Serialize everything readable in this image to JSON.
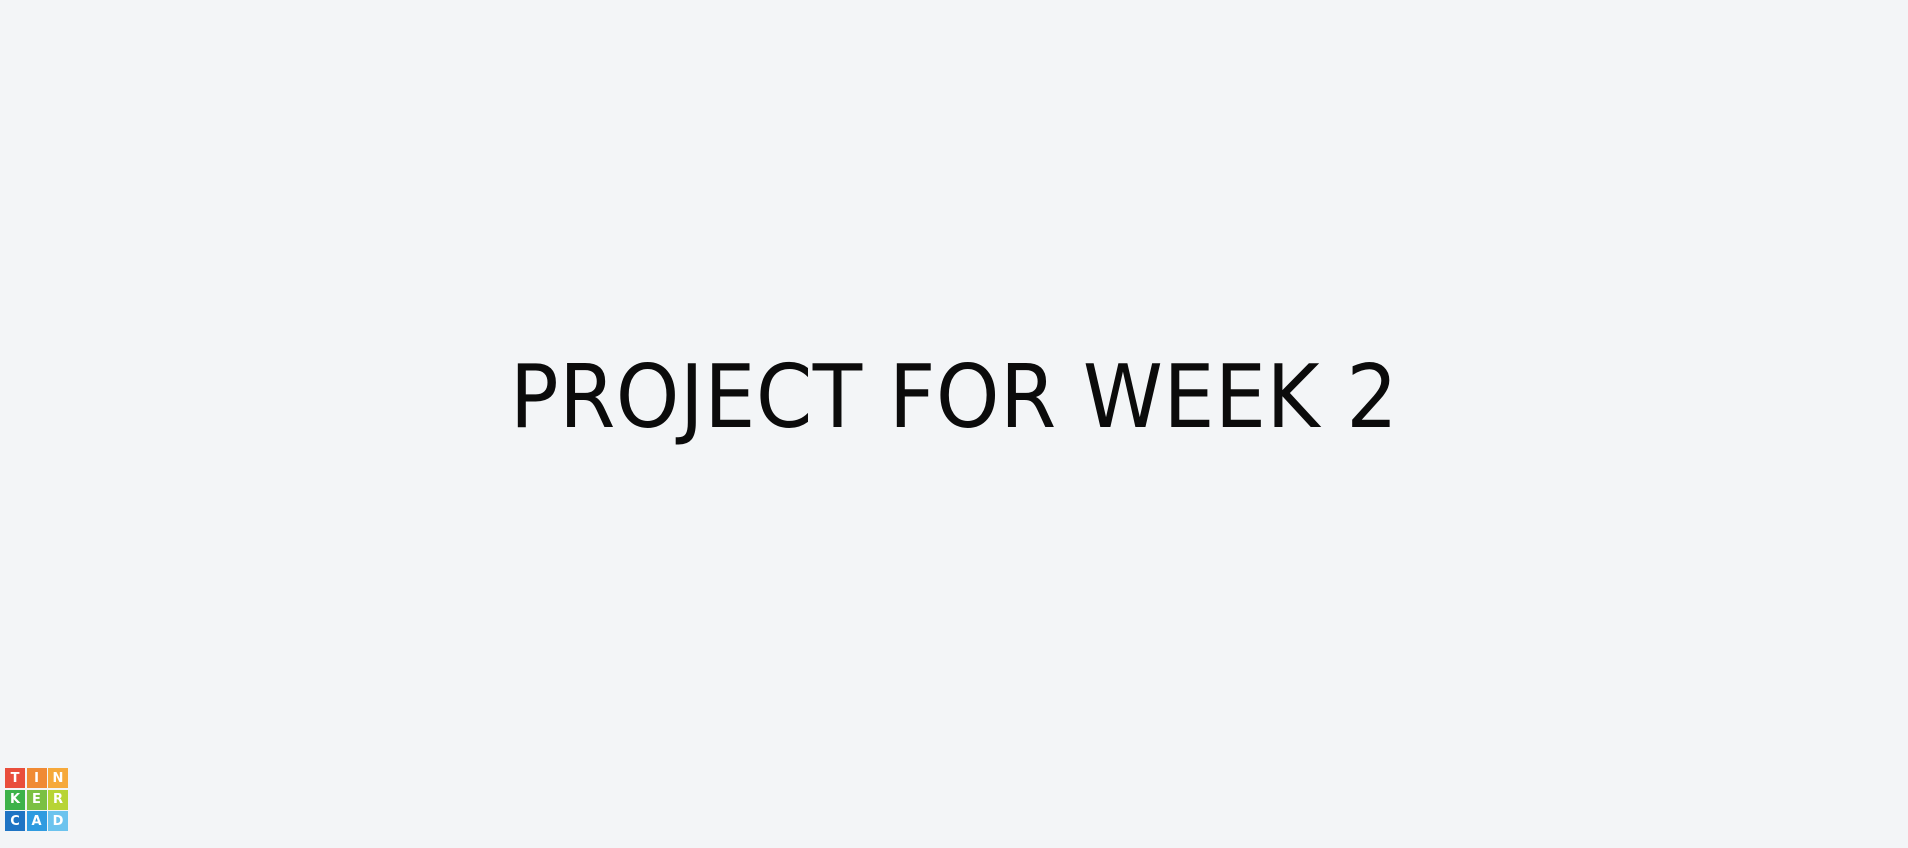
{
  "slide": {
    "title": "PROJECT FOR WEEK 2"
  },
  "logo": {
    "cells": [
      {
        "letter": "T",
        "color": "#e94e3c"
      },
      {
        "letter": "I",
        "color": "#f08a34"
      },
      {
        "letter": "N",
        "color": "#f6a93b"
      },
      {
        "letter": "K",
        "color": "#3db24a"
      },
      {
        "letter": "E",
        "color": "#7bc043"
      },
      {
        "letter": "R",
        "color": "#b7d435"
      },
      {
        "letter": "C",
        "color": "#1f74c4"
      },
      {
        "letter": "A",
        "color": "#2f9be0"
      },
      {
        "letter": "D",
        "color": "#6cc3ee"
      }
    ]
  },
  "colors": {
    "background": "#f3f5f7",
    "title_text": "#0b0b0b"
  }
}
